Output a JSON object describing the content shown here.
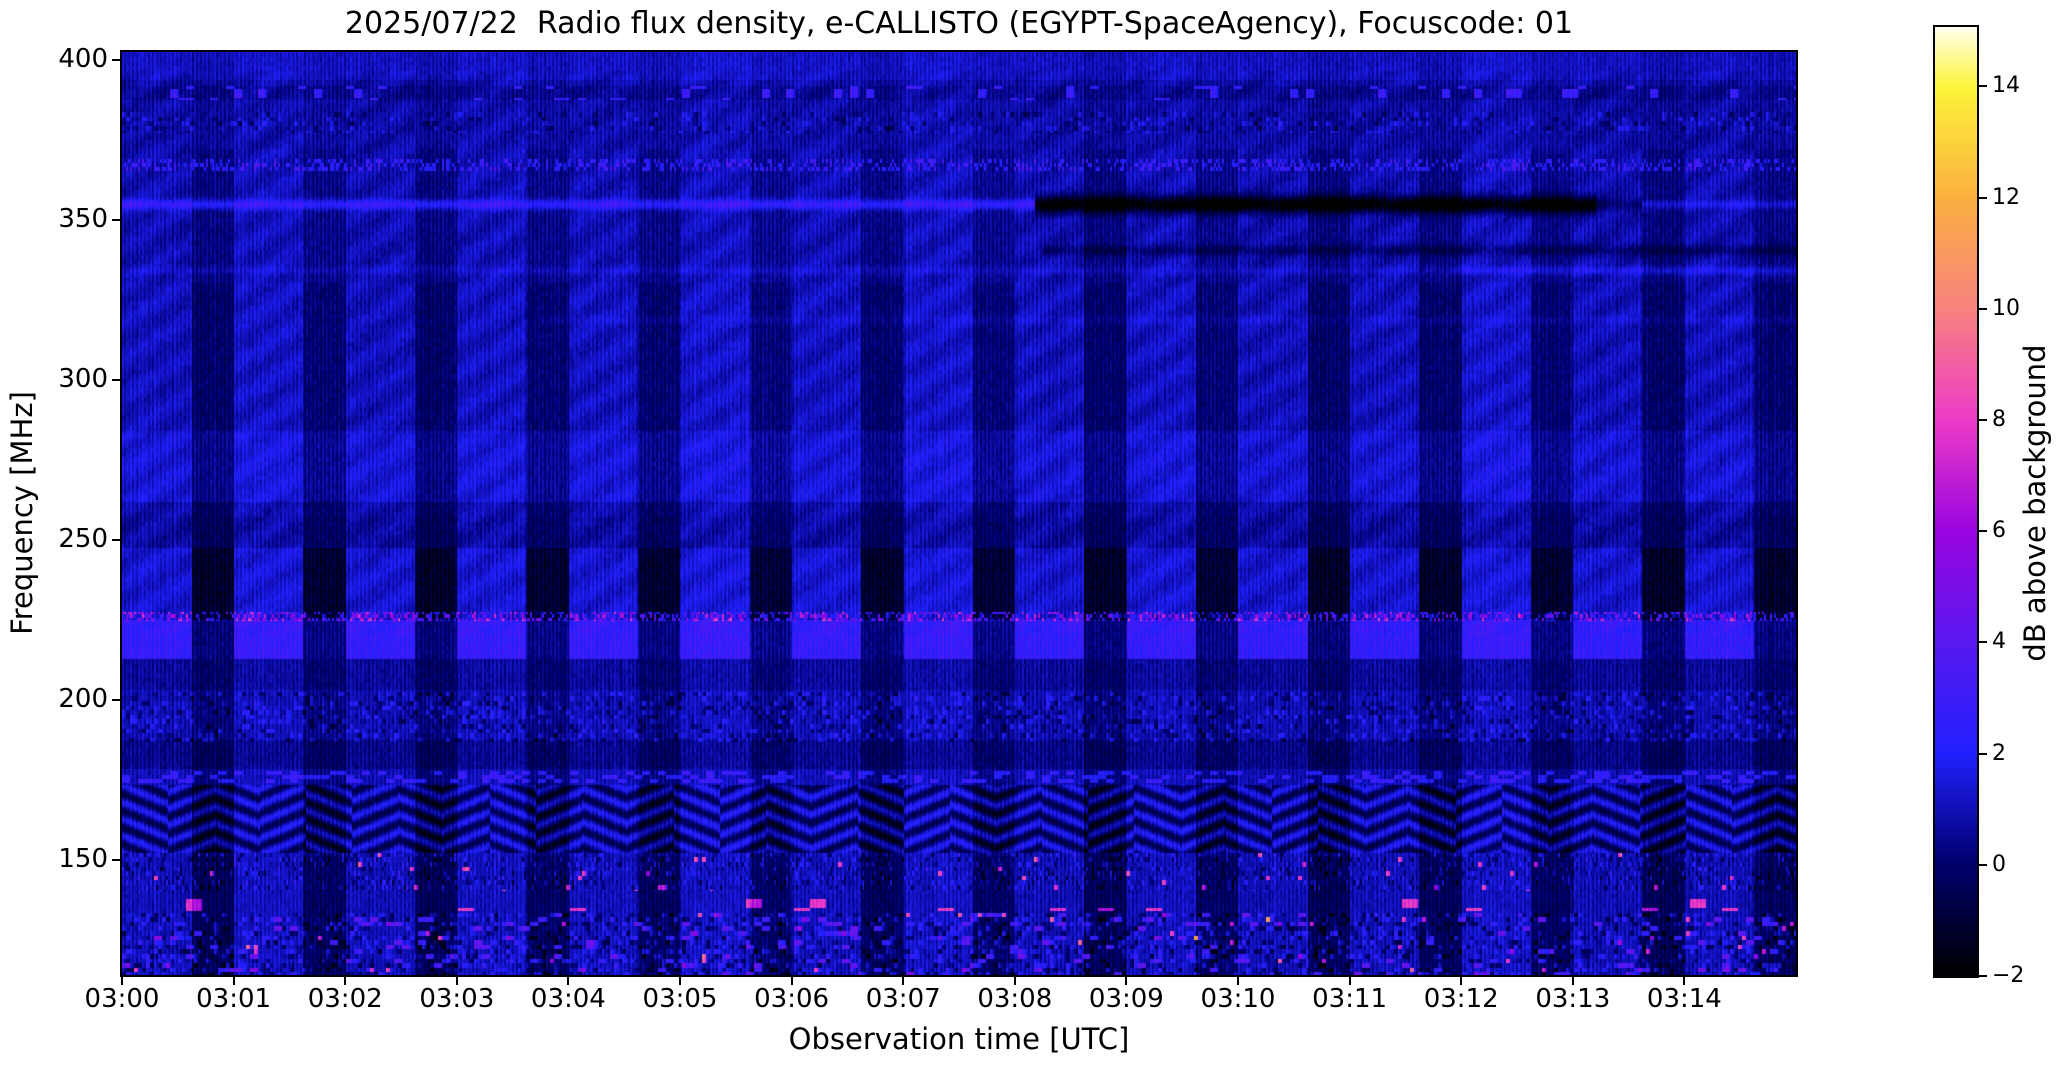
{
  "chart_data": {
    "type": "heatmap",
    "title": "2025/07/22  Radio flux density, e-CALLISTO (EGYPT-SpaceAgency), Focuscode: 01",
    "xlabel": "Observation time [UTC]",
    "ylabel": "Frequency [MHz]",
    "x_axis": {
      "start": "03:00",
      "end": "03:15",
      "minutes_span": 15,
      "ticks": [
        {
          "label": "03:00",
          "minute": 0
        },
        {
          "label": "03:01",
          "minute": 1
        },
        {
          "label": "03:02",
          "minute": 2
        },
        {
          "label": "03:03",
          "minute": 3
        },
        {
          "label": "03:04",
          "minute": 4
        },
        {
          "label": "03:05",
          "minute": 5
        },
        {
          "label": "03:06",
          "minute": 6
        },
        {
          "label": "03:07",
          "minute": 7
        },
        {
          "label": "03:08",
          "minute": 8
        },
        {
          "label": "03:09",
          "minute": 9
        },
        {
          "label": "03:10",
          "minute": 10
        },
        {
          "label": "03:11",
          "minute": 11
        },
        {
          "label": "03:12",
          "minute": 12
        },
        {
          "label": "03:13",
          "minute": 13
        },
        {
          "label": "03:14",
          "minute": 14
        }
      ]
    },
    "y_axis": {
      "unit": "MHz",
      "min": 114.1,
      "max": 402.5,
      "ticks": [
        {
          "label": "400",
          "mhz": 400
        },
        {
          "label": "350",
          "mhz": 350
        },
        {
          "label": "300",
          "mhz": 300
        },
        {
          "label": "250",
          "mhz": 250
        },
        {
          "label": "200",
          "mhz": 200
        },
        {
          "label": "150",
          "mhz": 150
        }
      ]
    },
    "colorbar": {
      "label": "dB above background",
      "min": -2,
      "max": 15.07,
      "ticks": [
        {
          "label": "14",
          "value": 14
        },
        {
          "label": "12",
          "value": 12
        },
        {
          "label": "10",
          "value": 10
        },
        {
          "label": "8",
          "value": 8
        },
        {
          "label": "6",
          "value": 6
        },
        {
          "label": "4",
          "value": 4
        },
        {
          "label": "2",
          "value": 2
        },
        {
          "label": "0",
          "value": 0
        },
        {
          "label": "−2",
          "value": -2
        }
      ],
      "stops": [
        [
          -2.0,
          "#000000"
        ],
        [
          0.0,
          "#00006e"
        ],
        [
          2.0,
          "#2121ff"
        ],
        [
          4.0,
          "#5a18f0"
        ],
        [
          6.0,
          "#9905e0"
        ],
        [
          8.0,
          "#ee3cc8"
        ],
        [
          10.0,
          "#f8837f"
        ],
        [
          12.0,
          "#fbb040"
        ],
        [
          14.0,
          "#fdf53a"
        ],
        [
          15.07,
          "#ffffec"
        ]
      ]
    },
    "features": [
      "Narrow-band line near 353 MHz: bright 03:00-03:08, dark/absorbed 03:08-03:13, faint bright again after 03:14",
      "~1-minute periodic alternating bright/dark vertical blocks across roughly 210-370 MHz",
      "High-contrast interference band 215-240 MHz with near-black off segments and bright blue on segments",
      "Speckled multicolour RFI line near 227 MHz",
      "Faint dark line near 340 MHz on right half and faint bright line near 333 MHz",
      "Scattered bright blue RFI blobs near 390 MHz and fine speckle line near 367 MHz",
      "Broadband noisy RFI below ~185 MHz with herringbone diagonal pattern near 150-165 MHz",
      "Pink/magenta RFI dashes near 136 MHz"
    ],
    "render": {
      "seed": 42,
      "base_db": 0.9,
      "pixel_noise": 0.6,
      "block_bright_frac": 0.62,
      "block_bright_db": 0.45,
      "block_dark_db": -1.1,
      "block_amp_bands": [
        [
          0.0,
          0.105,
          0.15
        ],
        [
          0.105,
          0.25,
          0.45
        ],
        [
          0.25,
          0.41,
          0.75
        ],
        [
          0.41,
          0.537,
          0.7
        ],
        [
          0.537,
          0.657,
          1.75
        ],
        [
          0.657,
          0.79,
          0.5
        ],
        [
          0.79,
          0.87,
          0.65
        ],
        [
          0.87,
          1.01,
          0.85
        ]
      ],
      "offset_bands": [
        [
          0.0,
          0.03,
          0.35
        ],
        [
          0.036,
          0.052,
          -0.3
        ],
        [
          0.41,
          0.487,
          0.4
        ],
        [
          0.487,
          0.503,
          -0.2
        ],
        [
          0.503,
          0.537,
          -0.35
        ],
        [
          0.615,
          0.657,
          1.35
        ],
        [
          0.657,
          0.691,
          -0.35
        ],
        [
          0.745,
          0.776,
          -0.55
        ],
        [
          0.794,
          0.867,
          -0.2
        ],
        [
          0.87,
          0.932,
          -0.15
        ],
        [
          0.932,
          1.01,
          -0.1
        ]
      ],
      "dash_bands": [
        {
          "w0": 0.036,
          "w1": 0.052,
          "shift": 3,
          "prob": 0.12,
          "db": 2.3,
          "mode": "add",
          "rg": 2
        },
        {
          "w0": 0.065,
          "w1": 0.087,
          "shift": 2,
          "prob": 0.3,
          "db": 1.2,
          "mode": "pm",
          "rg": 1
        },
        {
          "w0": 0.115,
          "w1": 0.128,
          "shift": 1,
          "prob": 0.3,
          "db": 2.0,
          "mode": "add",
          "rg": 1
        },
        {
          "w0": 0.606,
          "w1": 0.616,
          "shift": 1,
          "prob": 0.55,
          "db": 6.0,
          "mode": "rand",
          "rg": 1
        },
        {
          "w0": 0.693,
          "w1": 0.747,
          "shift": 2,
          "prob": 0.4,
          "db": 1.4,
          "mode": "pm",
          "rg": 1
        },
        {
          "w0": 0.778,
          "w1": 0.791,
          "shift": 3,
          "prob": 0.35,
          "db": 1.8,
          "mode": "add",
          "rg": 1
        },
        {
          "w0": 0.867,
          "w1": 0.908,
          "shift": 1,
          "prob": 0.3,
          "db": 1.6,
          "mode": "pm",
          "rg": 1
        },
        {
          "w0": 0.867,
          "w1": 0.908,
          "shift": 2,
          "prob": 0.012,
          "db": 7.0,
          "mode": "add",
          "rg": 1
        },
        {
          "w0": 0.917,
          "w1": 0.93,
          "shift": 4,
          "prob": 0.1,
          "db": 6.8,
          "mode": "add",
          "rg": 2
        },
        {
          "w0": 0.932,
          "w1": 1.01,
          "shift": 2,
          "prob": 0.45,
          "db": 1.7,
          "mode": "pm",
          "rg": 1
        },
        {
          "w0": 0.932,
          "w1": 1.01,
          "shift": 3,
          "prob": 0.06,
          "db": 3.0,
          "mode": "add",
          "rg": 1
        },
        {
          "w0": 0.932,
          "w1": 1.01,
          "shift": 2,
          "prob": 0.01,
          "db": 7.0,
          "mode": "add",
          "rg": 1
        }
      ],
      "lines": [
        {
          "wc": 0.1647,
          "segs": [
            [
              0.0,
              0.545,
              2.0,
              3.5
            ],
            [
              0.545,
              0.88,
              -3.2,
              6.0
            ],
            [
              0.88,
              0.908,
              -1.0,
              5.0
            ],
            [
              0.908,
              1.0,
              1.1,
              3.0
            ]
          ]
        },
        {
          "wc": 0.2145,
          "segs": [
            [
              0.55,
              1.0,
              -0.95,
              4.0
            ]
          ]
        },
        {
          "wc": 0.2362,
          "segs": [
            [
              0.0,
              0.793,
              0.5,
              3.0
            ],
            [
              0.793,
              1.0,
              1.0,
              3.0
            ]
          ]
        },
        {
          "wc": 0.29,
          "segs": [
            [
              0.25,
              1.0,
              0.38,
              3.0
            ]
          ]
        }
      ],
      "fringe": {
        "w0": 0.02,
        "w1": 0.63,
        "amp": 0.28
      },
      "herringbone": {
        "w0": 0.794,
        "w1": 0.867,
        "amp": 1.3,
        "base": -0.2,
        "chevron": 46
      }
    }
  }
}
